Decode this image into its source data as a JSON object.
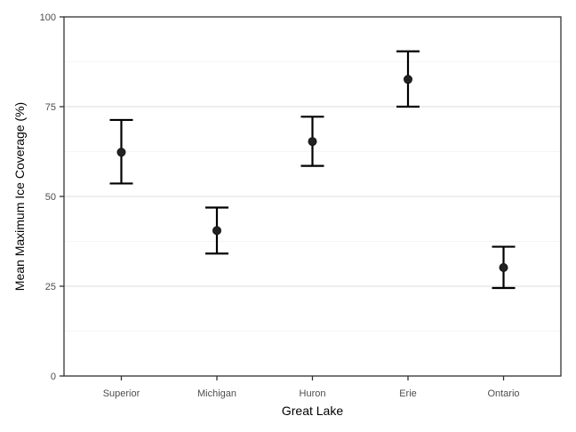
{
  "chart_data": {
    "type": "scatter",
    "title": "",
    "xlabel": "Great Lake",
    "ylabel": "Mean Maximum Ice Coverage (%)",
    "categories": [
      "Superior",
      "Michigan",
      "Huron",
      "Erie",
      "Ontario"
    ],
    "series": [
      {
        "values": [
          62.3,
          40.5,
          65.3,
          82.6,
          30.2
        ],
        "error_low": [
          53.6,
          34.1,
          58.5,
          75.0,
          24.5
        ],
        "error_high": [
          71.3,
          46.9,
          72.2,
          90.4,
          36.0
        ]
      }
    ],
    "ylim": [
      0,
      100
    ],
    "yticks": [
      "0",
      "25",
      "50",
      "75",
      "100"
    ],
    "grid": true,
    "point_color": "#222222",
    "errorbar_color": "#000000"
  }
}
